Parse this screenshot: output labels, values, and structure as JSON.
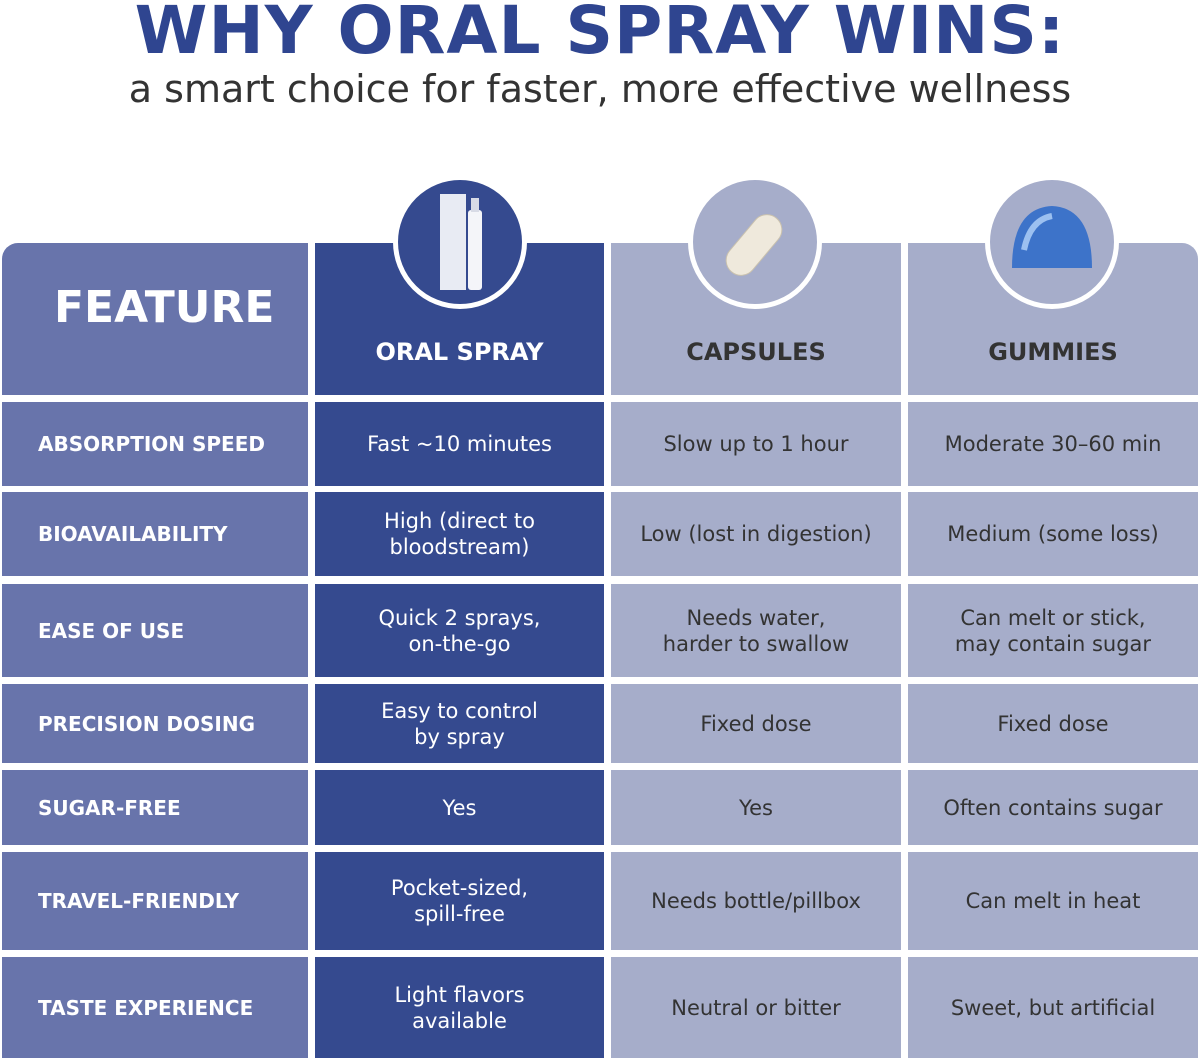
{
  "header": {
    "title": "WHY ORAL SPRAY WINS:",
    "subtitle": "a smart choice for faster, more effective wellness"
  },
  "table": {
    "columns": [
      "FEATURE",
      "ORAL SPRAY",
      "CAPSULES",
      "GUMMIES"
    ],
    "rows": [
      [
        "ABSORPTION SPEED",
        "Fast ~10 minutes",
        "Slow up to 1 hour",
        "Moderate 30–60 min"
      ],
      [
        "BIOAVAILABILITY",
        "High (direct to\nbloodstream)",
        "Low (lost in digestion)",
        "Medium (some loss)"
      ],
      [
        "EASE OF USE",
        "Quick 2 sprays,\non-the-go",
        "Needs water,\nharder to swallow",
        "Can melt or stick,\nmay contain sugar"
      ],
      [
        "PRECISION DOSING",
        "Easy to control\nby spray",
        "Fixed dose",
        "Fixed dose"
      ],
      [
        "SUGAR-FREE",
        "Yes",
        "Yes",
        "Often contains sugar"
      ],
      [
        "TRAVEL-FRIENDLY",
        "Pocket-sized,\nspill-free",
        "Needs bottle/pillbox",
        "Can melt in heat"
      ],
      [
        "TASTE EXPERIENCE",
        "Light flavors\navailable",
        "Neutral or bitter",
        "Sweet, but artificial"
      ]
    ]
  }
}
